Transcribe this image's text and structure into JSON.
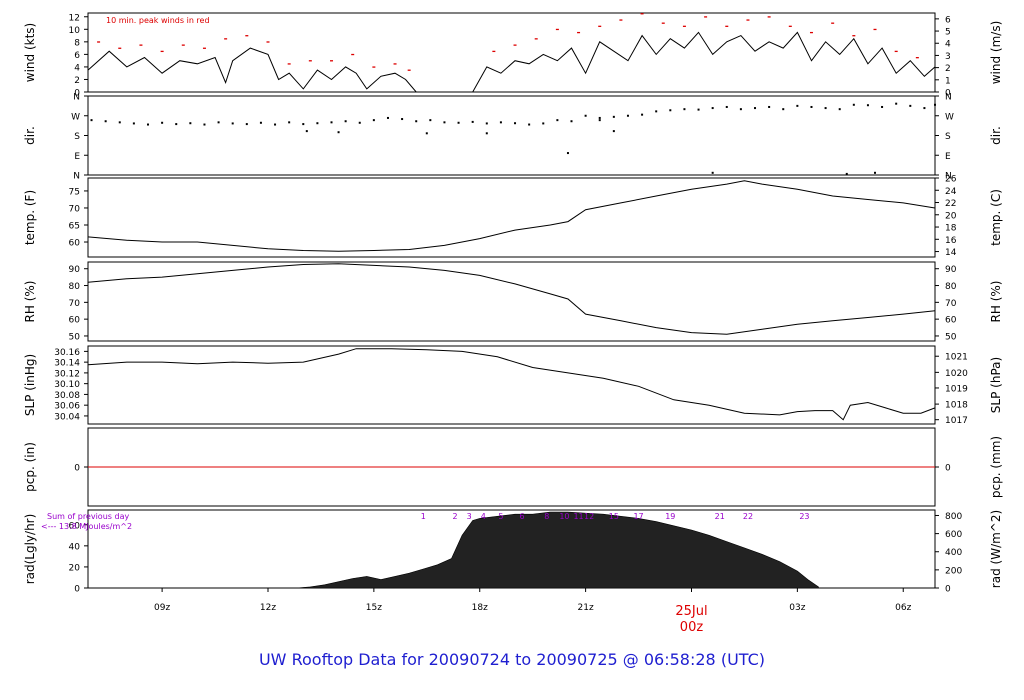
{
  "colors": {
    "axis": "#000000",
    "red": "#dd0000",
    "purple": "#9900cc",
    "blue": "#1f1fd0",
    "fill": "#222222"
  },
  "title": "UW Rooftop Data for 20090724  to  20090725 @ 06:58:28  (UTC)",
  "chart_data": {
    "type": "line",
    "x_axis": {
      "unit": "hours UTC",
      "range": [
        6.9,
        30.9
      ],
      "ticks": [
        {
          "x": 9,
          "label": "09z"
        },
        {
          "x": 12,
          "label": "12z"
        },
        {
          "x": 15,
          "label": "15z"
        },
        {
          "x": 18,
          "label": "18z"
        },
        {
          "x": 21,
          "label": "21z"
        },
        {
          "x": 27,
          "label": "03z"
        },
        {
          "x": 30,
          "label": "06z"
        }
      ],
      "day_marker": {
        "x": 24,
        "date": "25Jul",
        "label": "00z"
      }
    },
    "panels": [
      {
        "id": "wind",
        "ylabel_left": "wind (kts)",
        "ylabel_right": "wind (m/s)",
        "ylim": [
          0,
          12.6
        ],
        "left_ticks": [
          "0",
          "2",
          "4",
          "6",
          "8",
          "10",
          "12"
        ],
        "left_tick_values": [
          0,
          2,
          4,
          6,
          8,
          10,
          12
        ],
        "right_ticks": [
          "0",
          "1",
          "2",
          "3",
          "4",
          "5",
          "6"
        ],
        "right_tick_values": [
          0,
          1.944,
          3.888,
          5.832,
          7.776,
          9.72,
          11.664
        ],
        "note": "10 min. peak winds in red",
        "series": [
          {
            "style": "line",
            "x": [
              6.9,
              7.5,
              8.0,
              8.5,
              9.0,
              9.5,
              10.0,
              10.5,
              10.8,
              11.0,
              11.5,
              12.0,
              12.3,
              12.6,
              13.0,
              13.4,
              13.8,
              14.2,
              14.5,
              14.8,
              15.2,
              15.6,
              15.9,
              16.2,
              17.0,
              17.8,
              18.2,
              18.6,
              19.0,
              19.4,
              19.8,
              20.2,
              20.6,
              21.0,
              21.4,
              21.8,
              22.2,
              22.6,
              23.0,
              23.4,
              23.8,
              24.2,
              24.6,
              25.0,
              25.4,
              25.8,
              26.2,
              26.6,
              27.0,
              27.4,
              27.8,
              28.2,
              28.6,
              29.0,
              29.4,
              29.8,
              30.2,
              30.6,
              30.9
            ],
            "y": [
              3.5,
              6.5,
              4.0,
              5.5,
              3.0,
              5.0,
              4.5,
              5.5,
              1.5,
              5.0,
              7.0,
              6.0,
              2.0,
              3.0,
              0.5,
              3.5,
              2.0,
              4.0,
              3.0,
              0.5,
              2.5,
              3.0,
              2.0,
              0,
              0,
              0,
              4.0,
              3.0,
              5.0,
              4.5,
              6.0,
              5.0,
              7.0,
              3.0,
              8.0,
              6.5,
              5.0,
              9.0,
              6.0,
              8.5,
              7.0,
              9.5,
              6.0,
              8.0,
              9.0,
              6.5,
              8.0,
              7.0,
              9.5,
              5.0,
              8.0,
              6.0,
              8.5,
              4.5,
              7.0,
              3.0,
              5.0,
              2.5,
              4.0
            ]
          },
          {
            "style": "peaks",
            "x": [
              7.2,
              7.8,
              8.4,
              9.0,
              9.6,
              10.2,
              10.8,
              11.4,
              12.0,
              12.6,
              13.2,
              13.8,
              14.4,
              15.0,
              15.6,
              16.0,
              18.4,
              19.0,
              19.6,
              20.2,
              20.8,
              21.4,
              22.0,
              22.6,
              23.2,
              23.8,
              24.4,
              25.0,
              25.6,
              26.2,
              26.8,
              27.4,
              28.0,
              28.6,
              29.2,
              29.8,
              30.4
            ],
            "y": [
              8.0,
              7.0,
              7.5,
              6.5,
              7.5,
              7.0,
              8.5,
              9.0,
              8.0,
              4.5,
              5.0,
              5.0,
              6.0,
              4.0,
              4.5,
              3.5,
              6.5,
              7.5,
              8.5,
              10.0,
              9.5,
              10.5,
              11.5,
              12.5,
              11.0,
              10.5,
              12.0,
              10.5,
              11.5,
              12.0,
              10.5,
              9.5,
              11.0,
              9.0,
              10.0,
              6.5,
              5.5
            ]
          }
        ]
      },
      {
        "id": "dir",
        "ylabel_left": "dir.",
        "ylabel_right": "dir.",
        "ylim": [
          0,
          360
        ],
        "left_ticks": [
          "N",
          "E",
          "S",
          "W",
          "N"
        ],
        "left_tick_values": [
          0,
          90,
          180,
          270,
          360
        ],
        "right_ticks": [
          "N",
          "E",
          "S",
          "W",
          "N"
        ],
        "right_tick_values": [
          0,
          90,
          180,
          270,
          360
        ],
        "series": [
          {
            "style": "dots",
            "x": [
              7.0,
              7.4,
              7.8,
              8.2,
              8.6,
              9.0,
              9.4,
              9.8,
              10.2,
              10.6,
              11.0,
              11.4,
              11.8,
              12.2,
              12.6,
              13.0,
              13.4,
              13.8,
              14.2,
              14.6,
              15.0,
              15.4,
              15.8,
              16.2,
              16.6,
              17.0,
              17.4,
              17.8,
              18.2,
              18.6,
              19.0,
              19.4,
              19.8,
              20.2,
              20.6,
              21.0,
              21.4,
              21.8,
              22.2,
              22.6,
              23.0,
              23.4,
              23.8,
              24.2,
              24.6,
              25.0,
              25.4,
              25.8,
              26.2,
              26.6,
              27.0,
              27.4,
              27.8,
              28.2,
              28.6,
              29.0,
              29.4,
              29.8,
              30.2,
              30.6,
              30.9
            ],
            "y": [
              250,
              245,
              240,
              235,
              230,
              238,
              232,
              236,
              230,
              240,
              235,
              232,
              238,
              230,
              240,
              232,
              236,
              240,
              245,
              238,
              250,
              260,
              255,
              245,
              250,
              240,
              238,
              242,
              235,
              240,
              236,
              230,
              235,
              250,
              245,
              270,
              250,
              265,
              270,
              275,
              290,
              295,
              300,
              298,
              305,
              310,
              300,
              305,
              310,
              300,
              315,
              310,
              305,
              300,
              320,
              318,
              310,
              325,
              315,
              305,
              320
            ]
          },
          {
            "style": "dots",
            "x": [
              13.1,
              14.0,
              16.5,
              18.2,
              20.5,
              21.4,
              21.8,
              28.4,
              29.2,
              24.6
            ],
            "y": [
              200,
              195,
              190,
              190,
              100,
              260,
              200,
              5,
              10,
              10
            ]
          }
        ]
      },
      {
        "id": "temp",
        "ylabel_left": "temp. (F)",
        "ylabel_right": "temp. (C)",
        "ylim": [
          55.6,
          78.8
        ],
        "left_ticks": [
          "60",
          "65",
          "70",
          "75"
        ],
        "left_tick_values": [
          60,
          65,
          70,
          75
        ],
        "right_ticks": [
          "14",
          "16",
          "18",
          "20",
          "22",
          "24",
          "26"
        ],
        "right_tick_values": [
          57.2,
          60.8,
          64.4,
          68.0,
          71.6,
          75.2,
          78.8
        ],
        "series": [
          {
            "style": "line",
            "x": [
              6.9,
              8.0,
              9.0,
              10.0,
              11.0,
              12.0,
              13.0,
              14.0,
              15.0,
              16.0,
              17.0,
              18.0,
              19.0,
              20.0,
              20.5,
              21.0,
              22.0,
              23.0,
              24.0,
              25.0,
              25.5,
              26.0,
              27.0,
              28.0,
              29.0,
              30.0,
              30.9
            ],
            "y": [
              61.5,
              60.5,
              60.0,
              60.0,
              59.0,
              58.0,
              57.5,
              57.3,
              57.5,
              57.8,
              59.0,
              61.0,
              63.5,
              65.0,
              66.0,
              69.5,
              71.5,
              73.5,
              75.5,
              77.0,
              78.0,
              77.0,
              75.5,
              73.5,
              72.5,
              71.5,
              70.0
            ]
          }
        ]
      },
      {
        "id": "rh",
        "ylabel_left": "RH (%)",
        "ylabel_right": "RH (%)",
        "ylim": [
          47,
          94
        ],
        "left_ticks": [
          "50",
          "60",
          "70",
          "80",
          "90"
        ],
        "left_tick_values": [
          50,
          60,
          70,
          80,
          90
        ],
        "right_ticks": [
          "50",
          "60",
          "70",
          "80",
          "90"
        ],
        "right_tick_values": [
          50,
          60,
          70,
          80,
          90
        ],
        "series": [
          {
            "style": "line",
            "x": [
              6.9,
              8.0,
              9.0,
              10.0,
              11.0,
              12.0,
              13.0,
              14.0,
              15.0,
              16.0,
              17.0,
              18.0,
              19.0,
              20.0,
              20.5,
              21.0,
              22.0,
              23.0,
              24.0,
              25.0,
              26.0,
              27.0,
              28.0,
              29.0,
              30.0,
              30.9
            ],
            "y": [
              82,
              84,
              85,
              87,
              89,
              91,
              92.5,
              93,
              92,
              91,
              89,
              86,
              81,
              75,
              72,
              63,
              59,
              55,
              52,
              51,
              54,
              57,
              59,
              61,
              63,
              65
            ]
          }
        ]
      },
      {
        "id": "slp",
        "ylabel_left": "SLP (inHg)",
        "ylabel_right": "SLP (hPa)",
        "ylim": [
          30.025,
          30.17
        ],
        "left_ticks": [
          "30.04",
          "30.06",
          "30.08",
          "30.10",
          "30.12",
          "30.14",
          "30.16"
        ],
        "left_tick_values": [
          30.04,
          30.06,
          30.08,
          30.1,
          30.12,
          30.14,
          30.16
        ],
        "right_ticks": [
          "1017",
          "1018",
          "1019",
          "1020",
          "1021"
        ],
        "right_tick_values": [
          30.033,
          30.062,
          30.092,
          30.121,
          30.151
        ],
        "series": [
          {
            "style": "line",
            "x": [
              6.9,
              8.0,
              9.0,
              10.0,
              11.0,
              12.0,
              13.0,
              14.0,
              14.5,
              15.5,
              16.5,
              17.5,
              18.5,
              19.5,
              20.5,
              21.5,
              22.5,
              23.5,
              24.5,
              25.5,
              26.5,
              27.0,
              27.5,
              28.0,
              28.3,
              28.5,
              29.0,
              29.5,
              30.0,
              30.5,
              30.9
            ],
            "y": [
              30.135,
              30.14,
              30.14,
              30.137,
              30.14,
              30.138,
              30.14,
              30.155,
              30.165,
              30.165,
              30.163,
              30.16,
              30.15,
              30.13,
              30.12,
              30.11,
              30.095,
              30.07,
              30.06,
              30.045,
              30.042,
              30.048,
              30.05,
              30.05,
              30.033,
              30.06,
              30.065,
              30.055,
              30.045,
              30.045,
              30.055
            ]
          }
        ]
      },
      {
        "id": "pcp",
        "ylabel_left": "pcp. (in)",
        "ylabel_right": "pcp. (mm)",
        "ylim": [
          -1,
          1
        ],
        "left_ticks": [
          "0"
        ],
        "left_tick_values": [
          0
        ],
        "right_ticks": [
          "0"
        ],
        "right_tick_values": [
          0
        ],
        "series": [
          {
            "style": "line",
            "color": "red",
            "x": [
              6.9,
              30.9
            ],
            "y": [
              0,
              0
            ]
          }
        ]
      },
      {
        "id": "rad",
        "ylabel_left": "rad(Lgly/hr)",
        "ylabel_right": "rad (W/m^2)",
        "ylim": [
          0,
          74
        ],
        "left_ticks": [
          "0",
          "20",
          "40",
          "60"
        ],
        "left_tick_values": [
          0,
          20,
          40,
          60
        ],
        "right_ticks": [
          "0",
          "200",
          "400",
          "600",
          "800"
        ],
        "right_tick_values": [
          0,
          17.2,
          34.4,
          51.6,
          68.8
        ],
        "note_left_1": "Sum of previous day",
        "note_left_2": "<--- 13.8 MJoules/m^2",
        "hour_labels": [
          "1",
          "2",
          "3",
          "4",
          "5",
          "6",
          "8",
          "10",
          "11",
          "12",
          "15",
          "17",
          "19",
          "21",
          "22",
          "23"
        ],
        "hour_label_x": [
          16.4,
          17.3,
          17.7,
          18.1,
          18.6,
          19.2,
          19.9,
          20.4,
          20.8,
          21.1,
          21.8,
          22.5,
          23.4,
          24.8,
          25.6,
          27.2
        ],
        "series": [
          {
            "style": "area",
            "x": [
              12.8,
              13.2,
              13.6,
              14.0,
              14.4,
              14.8,
              15.2,
              15.6,
              16.0,
              16.4,
              16.8,
              17.2,
              17.5,
              17.8,
              18.0,
              18.5,
              19.0,
              19.5,
              20.0,
              20.5,
              21.0,
              21.5,
              22.0,
              22.5,
              23.0,
              23.5,
              24.0,
              24.5,
              25.0,
              25.5,
              26.0,
              26.5,
              27.0,
              27.3,
              27.6
            ],
            "y": [
              0,
              1,
              3,
              6,
              9,
              11,
              8,
              11,
              14,
              18,
              22,
              28,
              50,
              64,
              66,
              68,
              70,
              70,
              72,
              72,
              71,
              70,
              68,
              66,
              63,
              59,
              55,
              50,
              44,
              38,
              32,
              25,
              16,
              8,
              1
            ]
          }
        ]
      }
    ]
  }
}
